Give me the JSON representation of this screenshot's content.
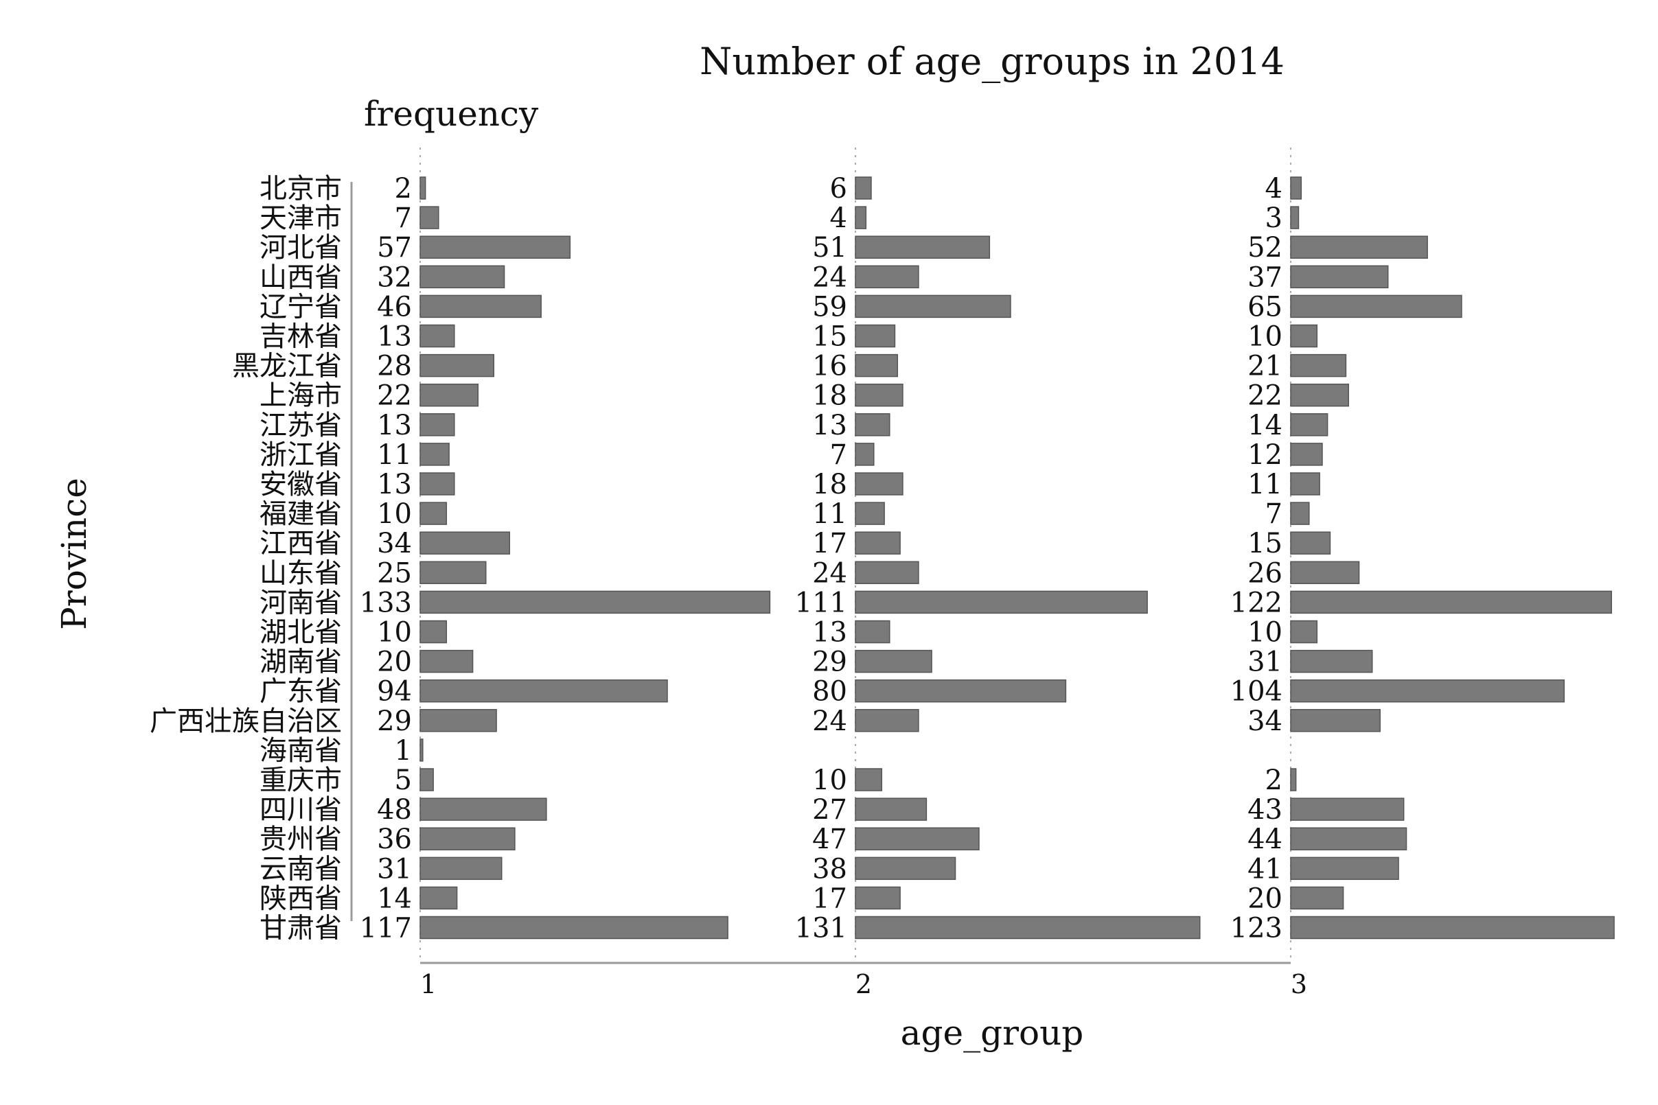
{
  "chart_data": {
    "type": "bar",
    "orientation": "horizontal",
    "title": "Number of age_groups in 2014",
    "value_label": "frequency",
    "ylabel": "Province",
    "xlabel": "age_group",
    "facets": [
      "1",
      "2",
      "3"
    ],
    "categories": [
      "北京市",
      "天津市",
      "河北省",
      "山西省",
      "辽宁省",
      "吉林省",
      "黑龙江省",
      "上海市",
      "江苏省",
      "浙江省",
      "安徽省",
      "福建省",
      "江西省",
      "山东省",
      "河南省",
      "湖北省",
      "湖南省",
      "广东省",
      "广西壮族自治区",
      "海南省",
      "重庆市",
      "四川省",
      "贵州省",
      "云南省",
      "陕西省",
      "甘肃省"
    ],
    "series": [
      {
        "facet": "1",
        "values": [
          2,
          7,
          57,
          32,
          46,
          13,
          28,
          22,
          13,
          11,
          13,
          10,
          34,
          25,
          133,
          10,
          20,
          94,
          29,
          1,
          5,
          48,
          36,
          31,
          14,
          117
        ]
      },
      {
        "facet": "2",
        "values": [
          6,
          4,
          51,
          24,
          59,
          15,
          16,
          18,
          13,
          7,
          18,
          11,
          17,
          24,
          111,
          13,
          29,
          80,
          24,
          null,
          10,
          27,
          47,
          38,
          17,
          131
        ]
      },
      {
        "facet": "3",
        "values": [
          4,
          3,
          52,
          37,
          65,
          10,
          21,
          22,
          14,
          12,
          11,
          7,
          15,
          26,
          122,
          10,
          31,
          104,
          34,
          null,
          2,
          43,
          44,
          41,
          20,
          123
        ]
      }
    ],
    "bar_color": "#7a7a7a",
    "grid": false,
    "legend": "none"
  }
}
